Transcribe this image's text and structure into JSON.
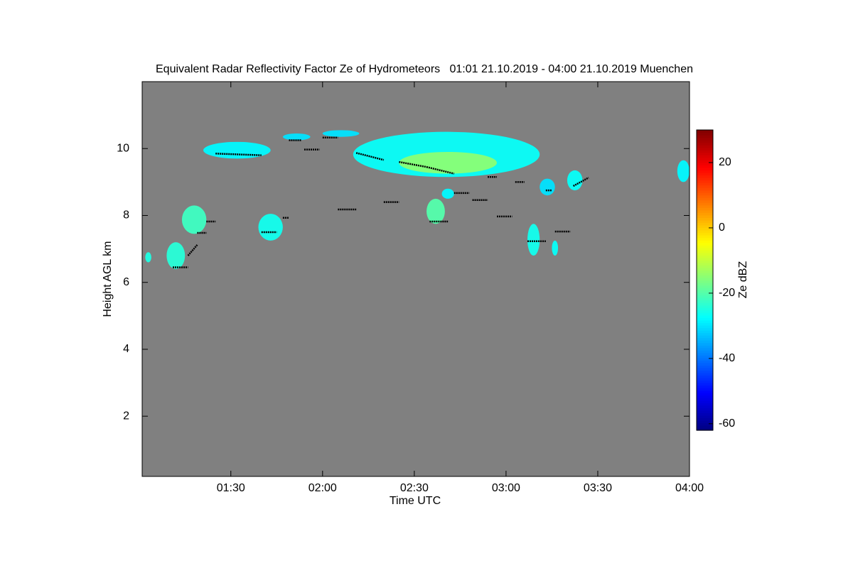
{
  "chart_data": {
    "type": "time-height",
    "title": "Equivalent Radar Reflectivity Factor Ze of Hydrometeors   01:01 21.10.2019 - 04:00 21.10.2019 Muenchen",
    "x_label": "Time UTC",
    "y_label": "Height AGL km",
    "colorbar_label": "Ze dBZ",
    "background": "#808080",
    "xlim": [
      "01:01",
      "04:00"
    ],
    "xticks": [
      "01:30",
      "02:00",
      "02:30",
      "03:00",
      "03:30",
      "04:00"
    ],
    "ylim": [
      0.2,
      12
    ],
    "yticks": [
      2,
      4,
      6,
      8,
      10
    ],
    "zlim": [
      -62,
      30
    ],
    "zticks": [
      -60,
      -40,
      -20,
      0,
      20
    ],
    "echoes": [
      {
        "t0": "01:02",
        "t1": "01:04",
        "h0": 6.6,
        "h1": 6.9,
        "z": -25
      },
      {
        "t0": "01:09",
        "t1": "01:15",
        "h0": 6.4,
        "h1": 7.2,
        "z": -24
      },
      {
        "t0": "01:14",
        "t1": "01:22",
        "h0": 7.45,
        "h1": 8.3,
        "z": -22
      },
      {
        "t0": "01:21",
        "t1": "01:43",
        "h0": 9.7,
        "h1": 10.2,
        "z": -28
      },
      {
        "t0": "01:39",
        "t1": "01:47",
        "h0": 7.25,
        "h1": 8.05,
        "z": -26
      },
      {
        "t0": "01:47",
        "t1": "01:56",
        "h0": 10.25,
        "h1": 10.45,
        "z": -30
      },
      {
        "t0": "02:00",
        "t1": "02:12",
        "h0": 10.35,
        "h1": 10.55,
        "z": -30
      },
      {
        "t0": "02:10",
        "t1": "03:11",
        "h0": 9.15,
        "h1": 10.5,
        "z": -27
      },
      {
        "t0": "02:25",
        "t1": "02:57",
        "h0": 9.25,
        "h1": 9.9,
        "z": -15
      },
      {
        "t0": "02:34",
        "t1": "02:40",
        "h0": 7.75,
        "h1": 8.5,
        "z": -20
      },
      {
        "t0": "02:39",
        "t1": "02:43",
        "h0": 8.5,
        "h1": 8.8,
        "z": -28
      },
      {
        "t0": "03:07",
        "t1": "03:11",
        "h0": 6.8,
        "h1": 7.75,
        "z": -26
      },
      {
        "t0": "03:11",
        "t1": "03:16",
        "h0": 8.6,
        "h1": 9.1,
        "z": -30
      },
      {
        "t0": "03:15",
        "t1": "03:17",
        "h0": 6.8,
        "h1": 7.25,
        "z": -27
      },
      {
        "t0": "03:20",
        "t1": "03:25",
        "h0": 8.75,
        "h1": 9.35,
        "z": -27
      },
      {
        "t0": "03:56",
        "t1": "04:00",
        "h0": 9.0,
        "h1": 9.65,
        "z": -28
      }
    ],
    "cloud_base_color": "#000000",
    "cloud_base": [
      {
        "t0": "01:11",
        "t1": "01:16",
        "h0": 6.45,
        "h1": 6.45
      },
      {
        "t0": "01:16",
        "t1": "01:19",
        "h0": 6.8,
        "h1": 7.12
      },
      {
        "t0": "01:19",
        "t1": "01:22",
        "h0": 7.48,
        "h1": 7.48
      },
      {
        "t0": "01:22",
        "t1": "01:25",
        "h0": 7.82,
        "h1": 7.82
      },
      {
        "t0": "01:25",
        "t1": "01:40",
        "h0": 9.85,
        "h1": 9.8
      },
      {
        "t0": "01:40",
        "t1": "01:45",
        "h0": 7.5,
        "h1": 7.5
      },
      {
        "t0": "01:47",
        "t1": "01:49",
        "h0": 7.93,
        "h1": 7.93
      },
      {
        "t0": "01:49",
        "t1": "01:53",
        "h0": 10.25,
        "h1": 10.25
      },
      {
        "t0": "01:54",
        "t1": "01:59",
        "h0": 9.97,
        "h1": 9.97
      },
      {
        "t0": "02:00",
        "t1": "02:05",
        "h0": 10.33,
        "h1": 10.33
      },
      {
        "t0": "02:05",
        "t1": "02:11",
        "h0": 8.18,
        "h1": 8.18
      },
      {
        "t0": "02:11",
        "t1": "02:20",
        "h0": 9.87,
        "h1": 9.66
      },
      {
        "t0": "02:20",
        "t1": "02:25",
        "h0": 8.4,
        "h1": 8.4
      },
      {
        "t0": "02:25",
        "t1": "02:34",
        "h0": 9.6,
        "h1": 9.45
      },
      {
        "t0": "02:34",
        "t1": "02:43",
        "h0": 9.45,
        "h1": 9.25
      },
      {
        "t0": "02:35",
        "t1": "02:41",
        "h0": 7.82,
        "h1": 7.82
      },
      {
        "t0": "02:43",
        "t1": "02:48",
        "h0": 8.67,
        "h1": 8.67
      },
      {
        "t0": "02:49",
        "t1": "02:54",
        "h0": 8.46,
        "h1": 8.46
      },
      {
        "t0": "02:54",
        "t1": "02:57",
        "h0": 9.15,
        "h1": 9.15
      },
      {
        "t0": "02:57",
        "t1": "03:02",
        "h0": 7.97,
        "h1": 7.97
      },
      {
        "t0": "03:03",
        "t1": "03:06",
        "h0": 9.0,
        "h1": 9.0
      },
      {
        "t0": "03:07",
        "t1": "03:13",
        "h0": 7.23,
        "h1": 7.23
      },
      {
        "t0": "03:13",
        "t1": "03:15",
        "h0": 8.75,
        "h1": 8.75
      },
      {
        "t0": "03:16",
        "t1": "03:21",
        "h0": 7.52,
        "h1": 7.52
      },
      {
        "t0": "03:22",
        "t1": "03:27",
        "h0": 8.88,
        "h1": 9.13
      }
    ]
  }
}
